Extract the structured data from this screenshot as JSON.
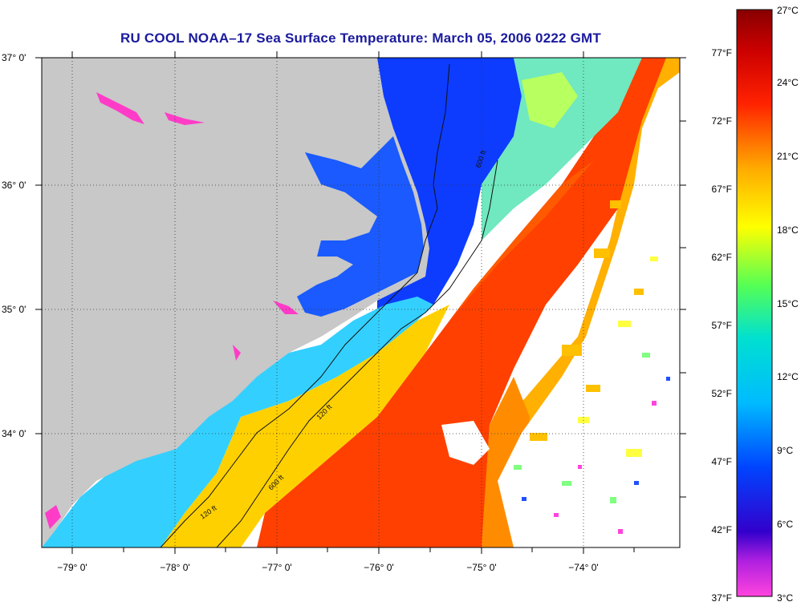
{
  "title": "RU COOL  NOAA–17  Sea Surface Temperature:  March 05, 2006 0222 GMT",
  "map": {
    "lat_labels": [
      "37° 0'",
      "36° 0'",
      "35° 0'",
      "34° 0'"
    ],
    "lon_labels": [
      "−79° 0'",
      "−78° 0'",
      "−77° 0'",
      "−76° 0'",
      "−75° 0'",
      "−74° 0'"
    ],
    "contour_labels": [
      "120 ft",
      "600 ft"
    ],
    "land_color": "#c8c8c8",
    "cloud_color": "#ffffff"
  },
  "legend": {
    "celsius_labels": [
      "27°C",
      "24°C",
      "21°C",
      "18°C",
      "15°C",
      "12°C",
      "9°C",
      "6°C",
      "3°C"
    ],
    "fahrenheit_labels": [
      "77°F",
      "72°F",
      "67°F",
      "62°F",
      "57°F",
      "52°F",
      "47°F",
      "42°F",
      "37°F"
    ],
    "colors": [
      "#ff33cc",
      "#3300cc",
      "#0033ff",
      "#00aaff",
      "#00e0e0",
      "#66ff66",
      "#ffff00",
      "#ff9900",
      "#ff2200",
      "#990000"
    ]
  }
}
